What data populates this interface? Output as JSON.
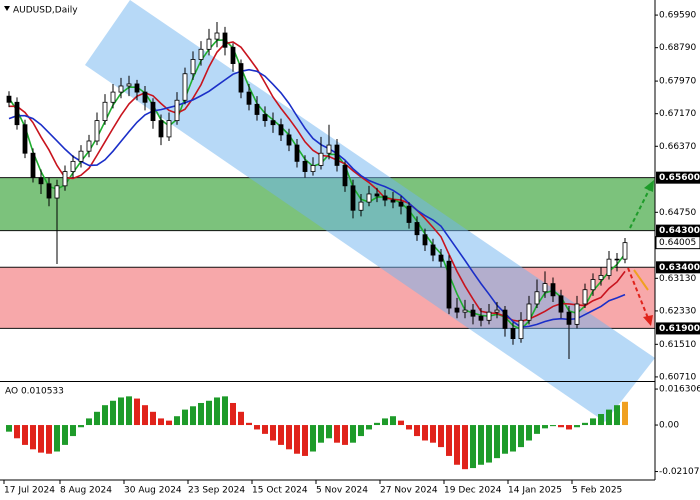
{
  "chart_data": {
    "type": "candlestick",
    "title": "AUDUSD,Daily",
    "categories": [
      "17 Jul 2024",
      null,
      null,
      null,
      null,
      null,
      null,
      "8 Aug 2024",
      null,
      null,
      null,
      null,
      null,
      null,
      null,
      "30 Aug 2024",
      null,
      null,
      null,
      null,
      null,
      null,
      null,
      "23 Sep 2024",
      null,
      null,
      null,
      null,
      null,
      null,
      null,
      "15 Oct 2024",
      null,
      null,
      null,
      null,
      null,
      null,
      null,
      "5 Nov 2024",
      null,
      null,
      null,
      null,
      null,
      null,
      null,
      "27 Nov 2024",
      null,
      null,
      null,
      null,
      null,
      null,
      null,
      "19 Dec 2024",
      null,
      null,
      null,
      null,
      null,
      null,
      null,
      "14 Jan 2025",
      null,
      null,
      null,
      null,
      null,
      null,
      null,
      "5 Feb 2025",
      null,
      null,
      null,
      null,
      null,
      null
    ],
    "candles": [
      [
        0.676,
        0.6772,
        0.6733,
        0.6745
      ],
      [
        0.6745,
        0.6757,
        0.6678,
        0.669
      ],
      [
        0.669,
        0.6702,
        0.6608,
        0.662
      ],
      [
        0.662,
        0.6632,
        0.6548,
        0.656
      ],
      [
        0.656,
        0.658,
        0.652,
        0.6545
      ],
      [
        0.6545,
        0.656,
        0.649,
        0.651
      ],
      [
        0.651,
        0.6555,
        0.6348,
        0.654
      ],
      [
        0.654,
        0.659,
        0.6528,
        0.6575
      ],
      [
        0.6575,
        0.6615,
        0.656,
        0.66
      ],
      [
        0.66,
        0.664,
        0.6585,
        0.6625
      ],
      [
        0.6625,
        0.6665,
        0.661,
        0.665
      ],
      [
        0.665,
        0.672,
        0.664,
        0.67
      ],
      [
        0.67,
        0.6765,
        0.669,
        0.6745
      ],
      [
        0.6745,
        0.679,
        0.673,
        0.677
      ],
      [
        0.677,
        0.6805,
        0.6755,
        0.6785
      ],
      [
        0.6785,
        0.681,
        0.676,
        0.679
      ],
      [
        0.679,
        0.68,
        0.675,
        0.677
      ],
      [
        0.677,
        0.6785,
        0.6725,
        0.6745
      ],
      [
        0.6745,
        0.6755,
        0.668,
        0.67
      ],
      [
        0.67,
        0.6715,
        0.664,
        0.666
      ],
      [
        0.666,
        0.672,
        0.665,
        0.67
      ],
      [
        0.67,
        0.677,
        0.669,
        0.675
      ],
      [
        0.675,
        0.683,
        0.674,
        0.6815
      ],
      [
        0.6815,
        0.687,
        0.68,
        0.685
      ],
      [
        0.685,
        0.6895,
        0.6835,
        0.6875
      ],
      [
        0.6875,
        0.6925,
        0.686,
        0.69
      ],
      [
        0.69,
        0.6942,
        0.688,
        0.6915
      ],
      [
        0.6915,
        0.693,
        0.686,
        0.688
      ],
      [
        0.688,
        0.689,
        0.682,
        0.684
      ],
      [
        0.684,
        0.685,
        0.6755,
        0.677
      ],
      [
        0.677,
        0.679,
        0.6725,
        0.674
      ],
      [
        0.674,
        0.676,
        0.67,
        0.6715
      ],
      [
        0.6715,
        0.6735,
        0.6685,
        0.67
      ],
      [
        0.67,
        0.672,
        0.667,
        0.669
      ],
      [
        0.669,
        0.6705,
        0.665,
        0.6665
      ],
      [
        0.6665,
        0.668,
        0.6625,
        0.664
      ],
      [
        0.664,
        0.6655,
        0.6585,
        0.66
      ],
      [
        0.66,
        0.6615,
        0.656,
        0.6575
      ],
      [
        0.6575,
        0.661,
        0.6565,
        0.659
      ],
      [
        0.659,
        0.666,
        0.658,
        0.662
      ],
      [
        0.662,
        0.669,
        0.6605,
        0.664
      ],
      [
        0.664,
        0.6655,
        0.6575,
        0.659
      ],
      [
        0.659,
        0.66,
        0.6525,
        0.654
      ],
      [
        0.654,
        0.6555,
        0.646,
        0.648
      ],
      [
        0.648,
        0.652,
        0.6465,
        0.65
      ],
      [
        0.65,
        0.654,
        0.649,
        0.652
      ],
      [
        0.652,
        0.6535,
        0.65,
        0.6515
      ],
      [
        0.6515,
        0.653,
        0.649,
        0.6505
      ],
      [
        0.6505,
        0.6525,
        0.6485,
        0.65
      ],
      [
        0.65,
        0.6515,
        0.647,
        0.649
      ],
      [
        0.649,
        0.65,
        0.6435,
        0.645
      ],
      [
        0.645,
        0.6465,
        0.6405,
        0.642
      ],
      [
        0.642,
        0.6435,
        0.638,
        0.6395
      ],
      [
        0.6395,
        0.641,
        0.6355,
        0.637
      ],
      [
        0.637,
        0.6385,
        0.634,
        0.6355
      ],
      [
        0.6355,
        0.637,
        0.6225,
        0.624
      ],
      [
        0.624,
        0.6265,
        0.6215,
        0.623
      ],
      [
        0.623,
        0.626,
        0.6215,
        0.6235
      ],
      [
        0.6235,
        0.625,
        0.62,
        0.622
      ],
      [
        0.622,
        0.624,
        0.6195,
        0.621
      ],
      [
        0.621,
        0.625,
        0.62,
        0.623
      ],
      [
        0.623,
        0.6255,
        0.6215,
        0.6235
      ],
      [
        0.6235,
        0.6245,
        0.617,
        0.619
      ],
      [
        0.619,
        0.6205,
        0.615,
        0.6165
      ],
      [
        0.6165,
        0.623,
        0.6155,
        0.621
      ],
      [
        0.621,
        0.627,
        0.62,
        0.625
      ],
      [
        0.625,
        0.631,
        0.624,
        0.628
      ],
      [
        0.628,
        0.633,
        0.6265,
        0.63
      ],
      [
        0.63,
        0.6315,
        0.6255,
        0.627
      ],
      [
        0.627,
        0.6285,
        0.6215,
        0.623
      ],
      [
        0.623,
        0.6245,
        0.6115,
        0.62
      ],
      [
        0.62,
        0.627,
        0.619,
        0.625
      ],
      [
        0.625,
        0.63,
        0.624,
        0.6285
      ],
      [
        0.6285,
        0.6325,
        0.627,
        0.631
      ],
      [
        0.631,
        0.634,
        0.6295,
        0.632
      ],
      [
        0.632,
        0.638,
        0.631,
        0.636
      ],
      [
        0.636,
        0.6375,
        0.633,
        0.636
      ],
      [
        0.636,
        0.6412,
        0.635,
        0.64005
      ]
    ],
    "series": [
      {
        "color": "#1fae2f",
        "values": [
          0.6755,
          0.6725,
          0.6685,
          0.6623,
          0.6575,
          0.6538,
          0.6532,
          0.6542,
          0.6572,
          0.66,
          0.6625,
          0.6658,
          0.6698,
          0.6738,
          0.6767,
          0.6782,
          0.6782,
          0.6768,
          0.6738,
          0.6702,
          0.6687,
          0.6703,
          0.6755,
          0.6805,
          0.6847,
          0.6875,
          0.6897,
          0.6898,
          0.6878,
          0.683,
          0.6783,
          0.6742,
          0.6718,
          0.6702,
          0.6685,
          0.6665,
          0.6635,
          0.6605,
          0.6588,
          0.6595,
          0.6617,
          0.6617,
          0.659,
          0.6537,
          0.6507,
          0.65,
          0.6512,
          0.6513,
          0.6507,
          0.6498,
          0.648,
          0.6453,
          0.6422,
          0.6395,
          0.6373,
          0.6322,
          0.6275,
          0.6235,
          0.6228,
          0.6222,
          0.622,
          0.6225,
          0.6218,
          0.6197,
          0.6188,
          0.6208,
          0.6247,
          0.6277,
          0.6283,
          0.6267,
          0.6233,
          0.6227,
          0.6245,
          0.6282,
          0.6305,
          0.633,
          0.6347,
          0.6373
        ]
      },
      {
        "color": "#c8141e",
        "values": [
          0.6735,
          0.6735,
          0.672,
          0.6695,
          0.666,
          0.6628,
          0.659,
          0.656,
          0.6558,
          0.6566,
          0.6583,
          0.6615,
          0.6648,
          0.6681,
          0.6713,
          0.6741,
          0.676,
          0.6768,
          0.6761,
          0.6742,
          0.6725,
          0.6718,
          0.6728,
          0.6755,
          0.6788,
          0.6832,
          0.6868,
          0.6889,
          0.6893,
          0.688,
          0.6854,
          0.6827,
          0.6793,
          0.6758,
          0.673,
          0.6705,
          0.6678,
          0.6648,
          0.6627,
          0.6615,
          0.6612,
          0.6603,
          0.6594,
          0.6577,
          0.6562,
          0.6548,
          0.6531,
          0.651,
          0.6507,
          0.6505,
          0.6497,
          0.648,
          0.646,
          0.6438,
          0.6415,
          0.6372,
          0.633,
          0.6294,
          0.6262,
          0.6232,
          0.6228,
          0.6227,
          0.622,
          0.621,
          0.6207,
          0.6213,
          0.6222,
          0.6232,
          0.6244,
          0.6251,
          0.625,
          0.6248,
          0.6246,
          0.6258,
          0.6266,
          0.6288,
          0.6304,
          0.633
        ]
      },
      {
        "color": "#1b2fc8",
        "values": [
          0.6705,
          0.6712,
          0.6712,
          0.6705,
          0.669,
          0.667,
          0.665,
          0.663,
          0.6612,
          0.66,
          0.659,
          0.6591,
          0.6604,
          0.6625,
          0.6649,
          0.6673,
          0.6696,
          0.6714,
          0.6724,
          0.6727,
          0.6732,
          0.6737,
          0.6744,
          0.6751,
          0.6761,
          0.6772,
          0.6786,
          0.68,
          0.6814,
          0.6821,
          0.6825,
          0.6821,
          0.6809,
          0.6789,
          0.6768,
          0.6742,
          0.6711,
          0.6681,
          0.6656,
          0.6641,
          0.6631,
          0.6619,
          0.6603,
          0.6582,
          0.6565,
          0.6553,
          0.6545,
          0.6538,
          0.6529,
          0.6516,
          0.6497,
          0.648,
          0.6467,
          0.6456,
          0.6441,
          0.6413,
          0.6385,
          0.6357,
          0.6328,
          0.63,
          0.6274,
          0.6247,
          0.6227,
          0.6207,
          0.6193,
          0.6195,
          0.62,
          0.6207,
          0.6212,
          0.6214,
          0.6212,
          0.6214,
          0.6224,
          0.6234,
          0.6244,
          0.6258,
          0.6265,
          0.6273
        ]
      }
    ],
    "ylim": [
      0.6061,
      0.6996
    ],
    "yticks": [
      {
        "value": 0.6959,
        "label": "0.69590"
      },
      {
        "value": 0.6879,
        "label": "0.68790"
      },
      {
        "value": 0.6797,
        "label": "0.67970"
      },
      {
        "value": 0.6717,
        "label": "0.67170"
      },
      {
        "value": 0.6637,
        "label": "0.66370"
      },
      {
        "value": 0.6475,
        "label": "0.64750"
      },
      {
        "value": 0.6313,
        "label": "0.63130"
      },
      {
        "value": 0.6233,
        "label": "0.62330"
      },
      {
        "value": 0.6151,
        "label": "0.61510"
      },
      {
        "value": 0.6071,
        "label": "0.60710"
      }
    ],
    "zones": [
      {
        "low": {
          "value": 0.643,
          "label": "0.64300"
        },
        "high": {
          "value": 0.656,
          "label": "0.65600"
        },
        "color": "#7cc27c"
      },
      {
        "low": {
          "value": 0.619,
          "label": "0.61900"
        },
        "high": {
          "value": 0.634,
          "label": "0.63400"
        },
        "color": "#f7a8aa"
      }
    ],
    "last_price": {
      "value": 0.64005,
      "label": "0.64005"
    },
    "oscillator": {
      "title": "AO 0.010533",
      "values": [
        -0.003,
        -0.006,
        -0.009,
        -0.011,
        -0.0125,
        -0.013,
        -0.012,
        -0.009,
        -0.005,
        -0.001,
        0.003,
        0.006,
        0.009,
        0.011,
        0.0125,
        0.013,
        0.012,
        0.009,
        0.006,
        0.003,
        0.002,
        0.004,
        0.007,
        0.0085,
        0.01,
        0.011,
        0.0125,
        0.013,
        0.01,
        0.006,
        0.001,
        -0.002,
        -0.004,
        -0.007,
        -0.009,
        -0.011,
        -0.013,
        -0.014,
        -0.012,
        -0.008,
        -0.006,
        -0.008,
        -0.009,
        -0.008,
        -0.005,
        -0.002,
        0.001,
        0.003,
        0.004,
        0.002,
        -0.002,
        -0.005,
        -0.007,
        -0.008,
        -0.01,
        -0.014,
        -0.018,
        -0.02,
        -0.0195,
        -0.018,
        -0.017,
        -0.015,
        -0.013,
        -0.012,
        -0.01,
        -0.007,
        -0.004,
        -0.0015,
        -0.0005,
        -0.001,
        -0.002,
        -0.001,
        0.001,
        0.003,
        0.005,
        0.007,
        0.009,
        0.010533
      ],
      "up_color": "#1e9b2a",
      "down_color": "#e0231b",
      "current_color": "#f0a020",
      "ylim": [
        -0.024,
        0.0186
      ],
      "yticks": [
        {
          "value": 0.016306,
          "label": "0.016306"
        },
        {
          "value": 0,
          "label": "0.00"
        },
        {
          "value": -0.021075,
          "label": "-0.021075"
        }
      ]
    }
  }
}
